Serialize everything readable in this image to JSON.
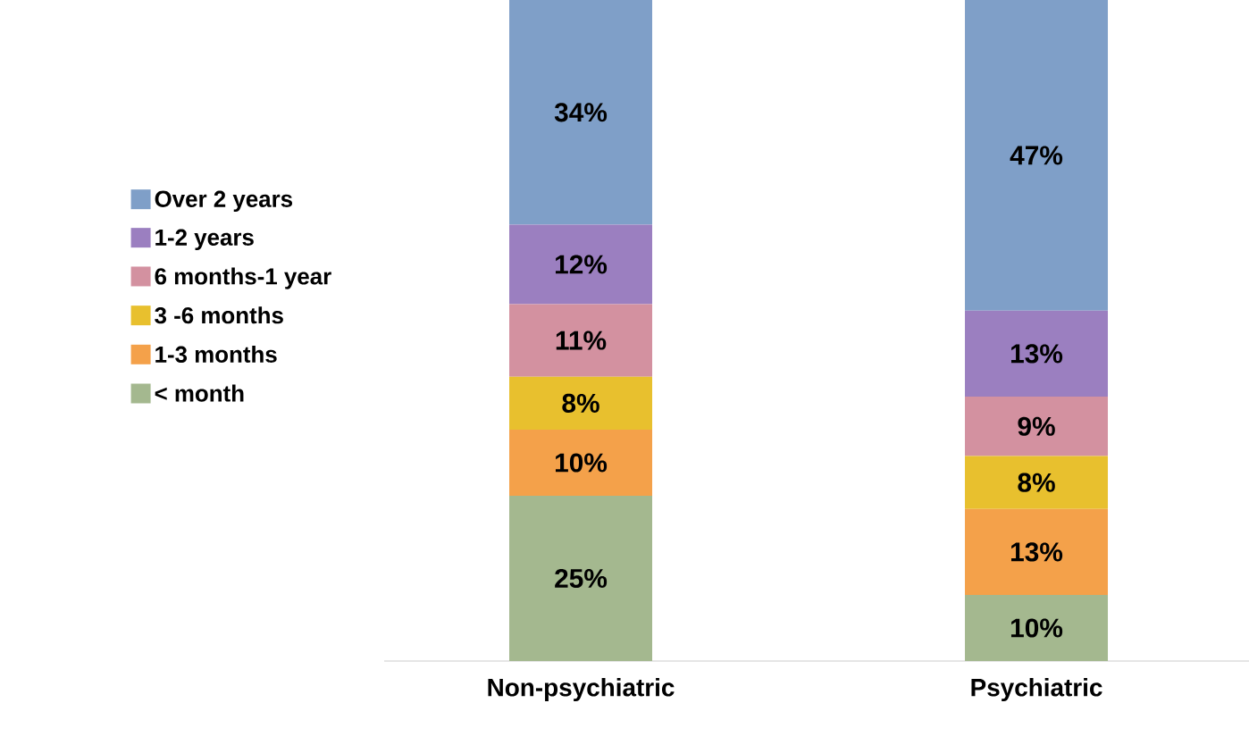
{
  "chart_data": {
    "type": "bar",
    "stacked": true,
    "legend": "left",
    "categories": [
      "Non-psychiatric",
      "Psychiatric"
    ],
    "series": [
      {
        "name": "< month",
        "color": "#a4b88f",
        "values": [
          25,
          10
        ],
        "value_labels": [
          "25%",
          "10%"
        ]
      },
      {
        "name": "1-3 months",
        "color": "#f4a14a",
        "values": [
          10,
          13
        ],
        "value_labels": [
          "10%",
          "13%"
        ]
      },
      {
        "name": "3 -6 months",
        "color": "#e8c02e",
        "values": [
          8,
          8
        ],
        "value_labels": [
          "8%",
          "8%"
        ]
      },
      {
        "name": "6 months-1 year",
        "color": "#d391a0",
        "values": [
          11,
          9
        ],
        "value_labels": [
          "11%",
          "9%"
        ]
      },
      {
        "name": "1-2 years",
        "color": "#9b7fc0",
        "values": [
          12,
          13
        ],
        "value_labels": [
          "12%",
          "13%"
        ]
      },
      {
        "name": "Over 2 years",
        "color": "#7f9fc8",
        "values": [
          34,
          47
        ],
        "value_labels": [
          "34%",
          "47%"
        ]
      }
    ]
  }
}
